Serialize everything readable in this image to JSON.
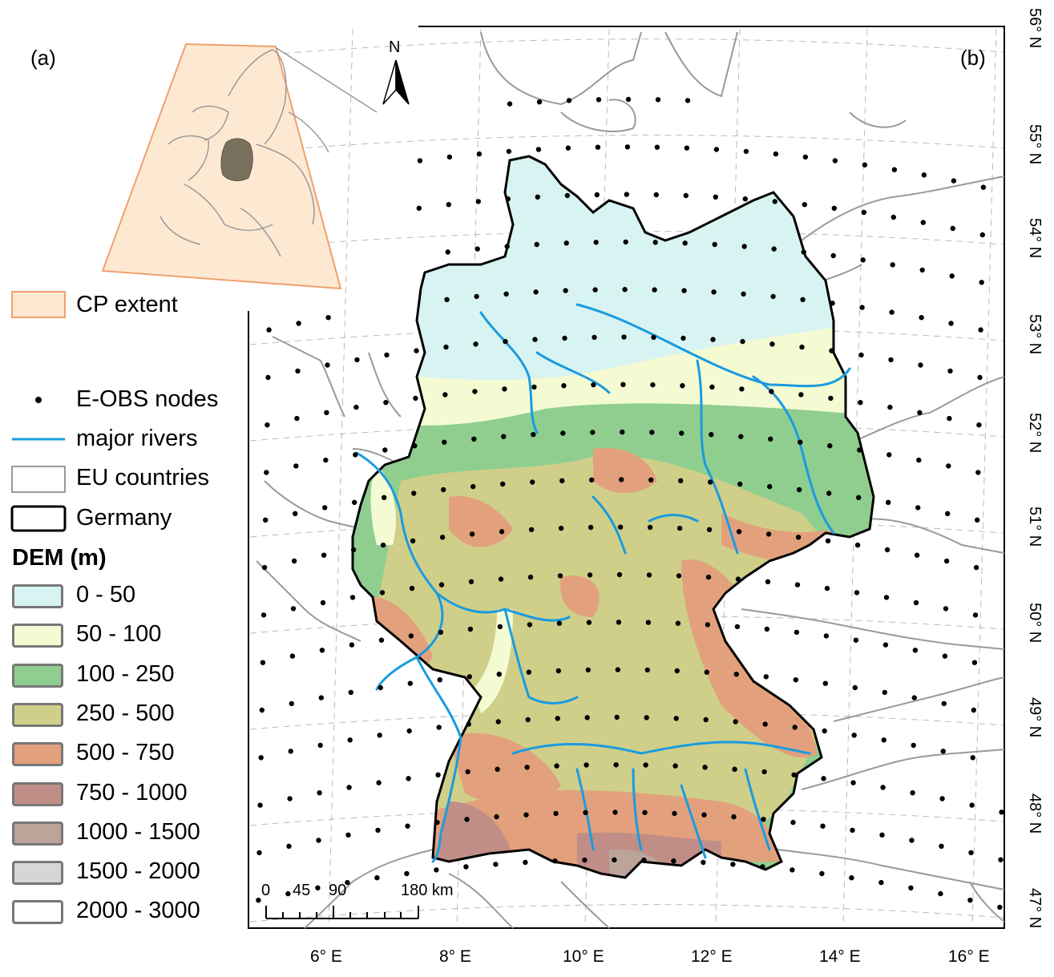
{
  "panels": {
    "a": "(a)",
    "b": "(b)"
  },
  "north_arrow": {
    "label": "N",
    "icon": "north-arrow-icon"
  },
  "legend": {
    "cp_extent": {
      "label": "CP extent",
      "fill": "#fde9d2",
      "stroke": "#f0a070"
    },
    "eobs": {
      "label": "E-OBS nodes",
      "color": "#000000"
    },
    "rivers": {
      "label": "major rivers",
      "color": "#1a9be0"
    },
    "eu": {
      "label": "EU countries",
      "color": "#9a9a9a"
    },
    "germany": {
      "label": "Germany",
      "color": "#000000"
    },
    "dem_title": "DEM (m)",
    "dem_classes": [
      {
        "label": "0 - 50",
        "color": "#d8f4f2"
      },
      {
        "label": "50 - 100",
        "color": "#f4fbd2"
      },
      {
        "label": "100 - 250",
        "color": "#8fce8f"
      },
      {
        "label": "250 - 500",
        "color": "#cfcf8a"
      },
      {
        "label": "500 - 750",
        "color": "#e2a17c"
      },
      {
        "label": "750 - 1000",
        "color": "#c08e86"
      },
      {
        "label": "1000 - 1500",
        "color": "#bca498"
      },
      {
        "label": "1500 - 2000",
        "color": "#d6d6d6"
      },
      {
        "label": "2000 - 3000",
        "color": "#ffffff"
      }
    ]
  },
  "axes": {
    "lon_labels": [
      "6° E",
      "8° E",
      "10° E",
      "12° E",
      "14° E",
      "16° E"
    ],
    "lat_labels": [
      "56° N",
      "55° N",
      "54° N",
      "53° N",
      "52° N",
      "51° N",
      "50° N",
      "49° N",
      "48° N",
      "47° N"
    ]
  },
  "scale_bar": {
    "ticks": [
      "0",
      "45",
      "90",
      "180 km"
    ]
  }
}
